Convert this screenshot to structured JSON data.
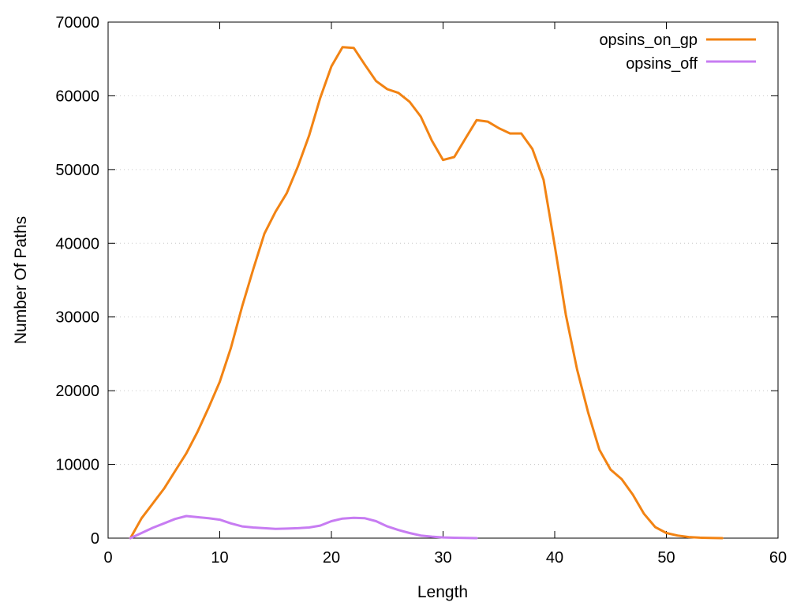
{
  "chart_data": {
    "type": "line",
    "title": "",
    "xlabel": "Length",
    "ylabel": "Number Of Paths",
    "xlim": [
      0,
      60
    ],
    "ylim": [
      0,
      70000
    ],
    "xticks": [
      "0",
      "10",
      "20",
      "30",
      "40",
      "50",
      "60"
    ],
    "yticks": [
      "0",
      "10000",
      "20000",
      "30000",
      "40000",
      "50000",
      "60000",
      "70000"
    ],
    "grid": "horizontal dotted",
    "legend": "top-right",
    "series": [
      {
        "name": "opsins_on_gp",
        "color": "#f28313",
        "x": [
          2,
          3,
          4,
          5,
          6,
          7,
          8,
          9,
          10,
          11,
          12,
          13,
          14,
          15,
          16,
          17,
          18,
          19,
          20,
          21,
          22,
          23,
          24,
          25,
          26,
          27,
          28,
          29,
          30,
          31,
          32,
          33,
          34,
          35,
          36,
          37,
          38,
          39,
          40,
          41,
          42,
          43,
          44,
          45,
          46,
          47,
          48,
          49,
          50,
          51,
          52,
          53,
          54,
          55
        ],
        "y": [
          0,
          2700,
          4700,
          6700,
          9100,
          11500,
          14400,
          17700,
          21200,
          25800,
          31400,
          36500,
          41300,
          44300,
          46800,
          50400,
          54600,
          59700,
          64000,
          66600,
          66500,
          64200,
          62000,
          60900,
          60400,
          59200,
          57200,
          53900,
          51300,
          51700,
          54200,
          56700,
          56500,
          55600,
          54900,
          54900,
          52800,
          48600,
          39700,
          30300,
          22900,
          17000,
          12000,
          9300,
          8000,
          5900,
          3300,
          1500,
          700,
          350,
          150,
          60,
          20,
          0
        ]
      },
      {
        "name": "opsins_off",
        "color": "#c77cf2",
        "x": [
          2,
          3,
          4,
          5,
          6,
          7,
          8,
          9,
          10,
          11,
          12,
          13,
          14,
          15,
          16,
          17,
          18,
          19,
          20,
          21,
          22,
          23,
          24,
          25,
          26,
          27,
          28,
          29,
          30,
          31,
          32,
          33
        ],
        "y": [
          0,
          700,
          1400,
          2000,
          2600,
          3000,
          2850,
          2700,
          2500,
          2000,
          1600,
          1450,
          1350,
          1250,
          1300,
          1350,
          1450,
          1700,
          2300,
          2650,
          2750,
          2700,
          2300,
          1600,
          1100,
          700,
          350,
          200,
          100,
          50,
          20,
          0
        ]
      }
    ]
  }
}
